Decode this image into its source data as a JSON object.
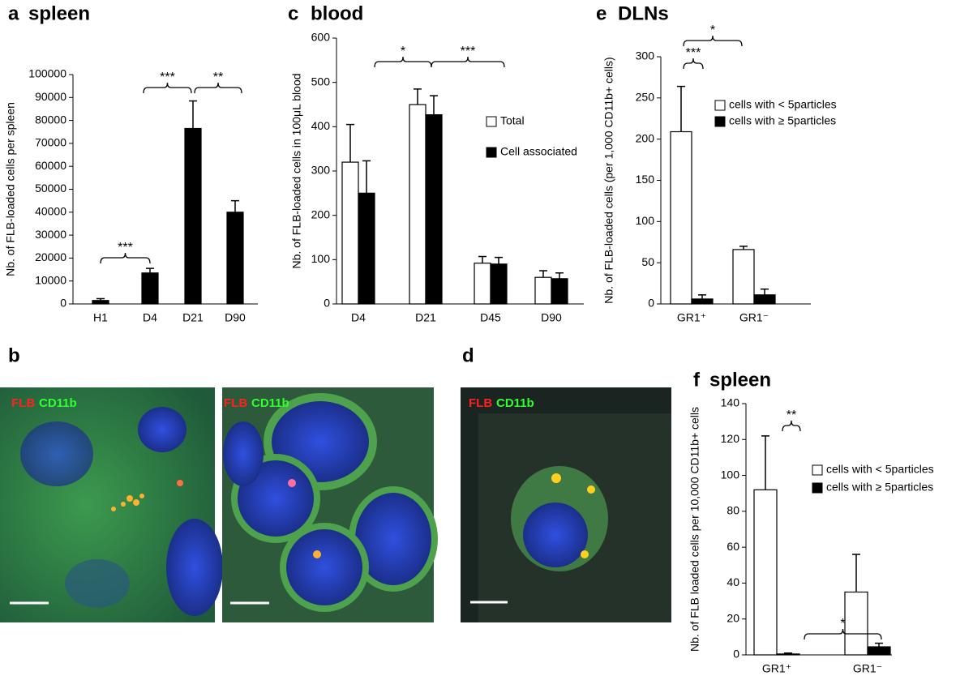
{
  "chart_data": [
    {
      "type": "bar",
      "label": "a",
      "title": "spleen",
      "ylabel": "Nb. of FLB-loaded cells per spleen",
      "categories": [
        "H1",
        "D4",
        "D21",
        "D90"
      ],
      "values": [
        1500,
        13500,
        76500,
        40000
      ],
      "errors": [
        800,
        2000,
        12000,
        5000
      ],
      "color": "#000000",
      "ylim": [
        0,
        100000
      ],
      "yticks": [
        0,
        10000,
        20000,
        30000,
        40000,
        50000,
        60000,
        70000,
        80000,
        90000,
        100000
      ],
      "annotations": [
        "***",
        "***",
        "**"
      ]
    },
    {
      "type": "bar",
      "label": "c",
      "title": "blood",
      "ylabel": "Nb. of FLB-loaded cells  in 100μL blood",
      "categories": [
        "D4",
        "D21",
        "D45",
        "D90"
      ],
      "series": [
        {
          "name": "Total",
          "color": "#ffffff",
          "values": [
            320,
            450,
            92,
            60
          ],
          "errors": [
            85,
            35,
            15,
            15
          ]
        },
        {
          "name": "Cell associated",
          "color": "#000000",
          "values": [
            250,
            427,
            90,
            57
          ],
          "errors": [
            73,
            43,
            15,
            13
          ]
        }
      ],
      "ylim": [
        0,
        600
      ],
      "yticks": [
        0,
        100,
        200,
        300,
        400,
        500,
        600
      ],
      "annotations": [
        "*",
        "***"
      ]
    },
    {
      "type": "bar",
      "label": "e",
      "title": "DLNs",
      "ylabel": "Nb. of FLB-loaded cells (per 1,000 CD11b+ cells)",
      "categories": [
        "GR1⁺",
        "GR1⁻"
      ],
      "series": [
        {
          "name": "cells with < 5particles",
          "color": "#ffffff",
          "values": [
            209,
            66
          ],
          "errors": [
            55,
            4
          ]
        },
        {
          "name": "cells with ≥ 5particles",
          "color": "#000000",
          "values": [
            6,
            11
          ],
          "errors": [
            5,
            7
          ]
        }
      ],
      "ylim": [
        0,
        300
      ],
      "yticks": [
        0,
        50,
        100,
        150,
        200,
        250,
        300
      ],
      "annotations": [
        "***",
        "*"
      ]
    },
    {
      "type": "bar",
      "label": "f",
      "title": "spleen",
      "ylabel": "Nb. of FLB loaded cells per 10,000 CD11b+ cells",
      "categories": [
        "GR1⁺",
        "GR1⁻"
      ],
      "series": [
        {
          "name": "cells with < 5particles",
          "color": "#ffffff",
          "values": [
            92,
            35
          ],
          "errors": [
            30,
            21
          ]
        },
        {
          "name": "cells with ≥ 5particles",
          "color": "#000000",
          "values": [
            0.5,
            4.5
          ],
          "errors": [
            0.5,
            2
          ]
        }
      ],
      "ylim": [
        0,
        140
      ],
      "yticks": [
        0,
        20,
        40,
        60,
        80,
        100,
        120,
        140
      ],
      "annotations": [
        "**",
        "*"
      ]
    }
  ],
  "micrograph_panels": [
    {
      "label": "b",
      "stains": [
        [
          "FLB",
          "CD11b"
        ],
        [
          "FLB",
          "CD11b"
        ]
      ]
    },
    {
      "label": "d",
      "stains": [
        [
          "FLB",
          "CD11b"
        ]
      ]
    }
  ]
}
